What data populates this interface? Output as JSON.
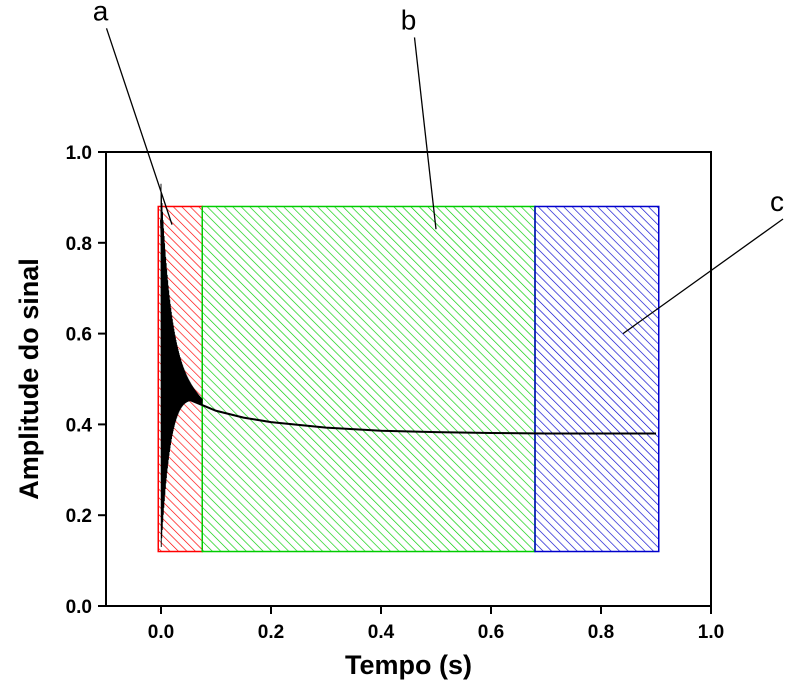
{
  "chart_data": {
    "type": "line",
    "xlabel": "Tempo (s)",
    "ylabel": "Amplitude do sinal",
    "xlim": [
      -0.1,
      1.0
    ],
    "ylim": [
      0.0,
      1.0
    ],
    "xticks": [
      0.0,
      0.2,
      0.4,
      0.6,
      0.8,
      1.0
    ],
    "yticks": [
      0.0,
      0.2,
      0.4,
      0.6,
      0.8,
      1.0
    ],
    "xtick_labels": [
      "0.0",
      "0.2",
      "0.4",
      "0.6",
      "0.8",
      "1.0"
    ],
    "ytick_labels": [
      "0.0",
      "0.2",
      "0.4",
      "0.6",
      "0.8",
      "1.0"
    ],
    "grid": false,
    "series": [
      {
        "color": "#000000",
        "x": [
          0.0,
          0.005,
          0.01,
          0.02,
          0.03,
          0.05,
          0.07,
          0.1,
          0.15,
          0.2,
          0.3,
          0.4,
          0.5,
          0.6,
          0.7,
          0.8,
          0.9
        ],
        "y": [
          0.85,
          0.7,
          0.6,
          0.52,
          0.48,
          0.455,
          0.445,
          0.43,
          0.415,
          0.405,
          0.393,
          0.386,
          0.383,
          0.381,
          0.38,
          0.38,
          0.38
        ]
      }
    ],
    "oscillation": {
      "x_start": 0.0,
      "x_end": 0.075,
      "y_upper_start": 0.93,
      "y_lower_start": 0.12,
      "y_center_end": 0.45
    },
    "regions": [
      {
        "label": "a",
        "x0": -0.005,
        "x1": 0.075,
        "y0": 0.12,
        "y1": 0.88,
        "color": "#ff0000",
        "label_pos": [
          -0.11,
          1.29
        ],
        "arrow_to": [
          0.02,
          0.84
        ]
      },
      {
        "label": "b",
        "x0": 0.075,
        "x1": 0.68,
        "y0": 0.12,
        "y1": 0.88,
        "color": "#00cc00",
        "label_pos": [
          0.45,
          1.27
        ],
        "arrow_to": [
          0.5,
          0.83
        ]
      },
      {
        "label": "c",
        "x0": 0.68,
        "x1": 0.905,
        "y0": 0.12,
        "y1": 0.88,
        "color": "#0000cc",
        "label_pos": [
          1.12,
          0.87
        ],
        "arrow_to": [
          0.84,
          0.6
        ]
      }
    ]
  }
}
